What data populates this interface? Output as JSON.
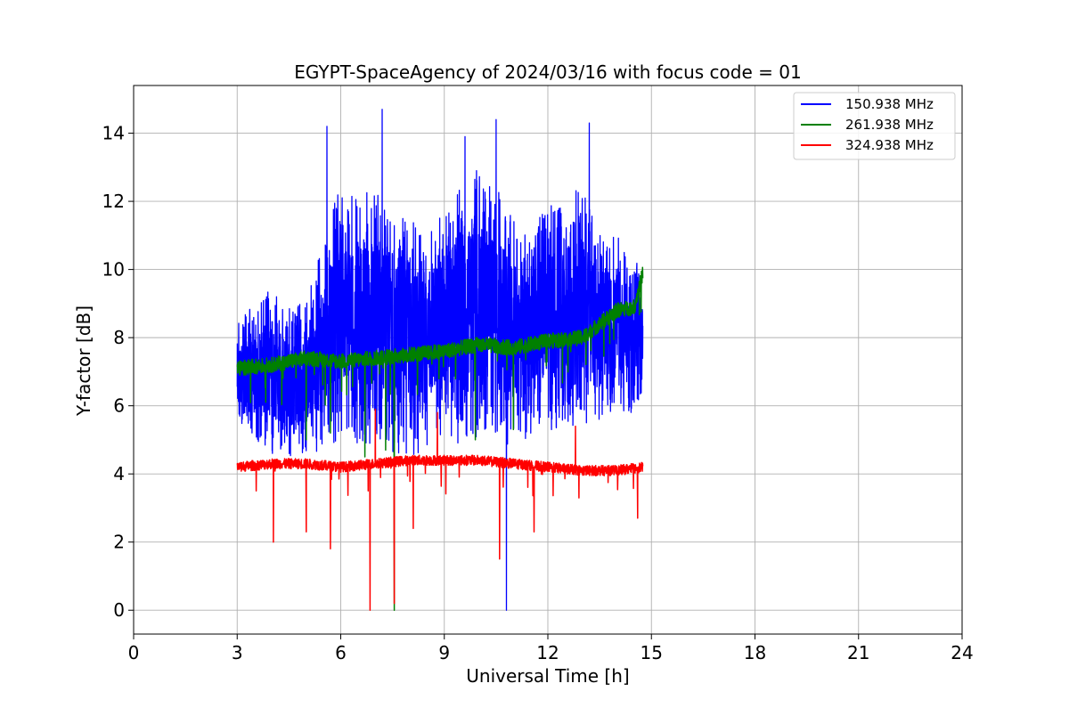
{
  "chart_data": {
    "type": "line",
    "title": "EGYPT-SpaceAgency of 2024/03/16 with focus code = 01",
    "xlabel": "Universal Time [h]",
    "ylabel": "Y-factor [dB]",
    "xlim": [
      0,
      24
    ],
    "ylim": [
      -0.7,
      15.4
    ],
    "xticks": [
      0,
      3,
      6,
      9,
      12,
      15,
      18,
      21,
      24
    ],
    "yticks": [
      0,
      2,
      4,
      6,
      8,
      10,
      12,
      14
    ],
    "grid": true,
    "legend_position": "top-right",
    "series": [
      {
        "name": "150.938 MHz",
        "color": "#0000ff",
        "x_range": [
          3.0,
          14.75
        ],
        "envelope": {
          "x": [
            3.0,
            3.5,
            4.0,
            4.5,
            5.0,
            5.5,
            6.0,
            6.5,
            7.0,
            7.5,
            8.0,
            8.5,
            9.0,
            9.5,
            10.0,
            10.5,
            11.0,
            11.5,
            12.0,
            12.5,
            13.0,
            13.5,
            14.0,
            14.5,
            14.75
          ],
          "low": [
            5.5,
            5.0,
            4.6,
            4.5,
            4.6,
            4.7,
            5.0,
            4.8,
            4.6,
            4.5,
            4.4,
            4.5,
            4.7,
            4.8,
            5.0,
            5.0,
            4.8,
            5.0,
            5.2,
            5.4,
            5.4,
            5.6,
            5.8,
            5.8,
            6.2
          ],
          "high": [
            8.8,
            9.0,
            9.5,
            9.0,
            9.0,
            11.0,
            12.5,
            12.0,
            12.5,
            11.5,
            11.5,
            11.0,
            12.0,
            12.5,
            13.0,
            12.5,
            11.5,
            11.0,
            12.0,
            12.0,
            12.5,
            11.0,
            11.0,
            10.5,
            10.0
          ]
        },
        "spikes": [
          {
            "x": 5.6,
            "y": 14.2
          },
          {
            "x": 7.2,
            "y": 14.7
          },
          {
            "x": 10.5,
            "y": 14.4
          },
          {
            "x": 13.2,
            "y": 14.3
          },
          {
            "x": 9.6,
            "y": 13.9
          },
          {
            "x": 10.8,
            "y": 0.0
          }
        ]
      },
      {
        "name": "261.938 MHz",
        "color": "#008000",
        "x_range": [
          3.0,
          14.75
        ],
        "trend": {
          "x": [
            3.0,
            4.0,
            5.0,
            6.0,
            7.0,
            8.0,
            9.0,
            10.0,
            11.0,
            12.0,
            13.0,
            13.5,
            14.0,
            14.5,
            14.75
          ],
          "y": [
            7.1,
            7.2,
            7.4,
            7.3,
            7.4,
            7.5,
            7.6,
            7.8,
            7.7,
            7.9,
            8.0,
            8.4,
            8.8,
            8.9,
            9.9
          ]
        },
        "dips": [
          {
            "x": 5.0,
            "y": 5.0
          },
          {
            "x": 5.7,
            "y": 5.2
          },
          {
            "x": 6.7,
            "y": 4.5
          },
          {
            "x": 7.3,
            "y": 4.7
          },
          {
            "x": 7.55,
            "y": 0.0
          },
          {
            "x": 9.9,
            "y": 5.0
          },
          {
            "x": 11.0,
            "y": 5.3
          }
        ]
      },
      {
        "name": "324.938 MHz",
        "color": "#ff0000",
        "x_range": [
          3.0,
          14.75
        ],
        "trend": {
          "x": [
            3.0,
            4.0,
            5.0,
            6.0,
            7.0,
            8.0,
            9.0,
            10.0,
            11.0,
            12.0,
            13.0,
            14.0,
            14.75
          ],
          "y": [
            4.2,
            4.3,
            4.3,
            4.2,
            4.3,
            4.4,
            4.4,
            4.4,
            4.3,
            4.2,
            4.1,
            4.1,
            4.2
          ]
        },
        "dips": [
          {
            "x": 4.05,
            "y": 2.0
          },
          {
            "x": 5.0,
            "y": 2.3
          },
          {
            "x": 5.7,
            "y": 1.8
          },
          {
            "x": 6.85,
            "y": 0.0
          },
          {
            "x": 7.55,
            "y": 0.2
          },
          {
            "x": 8.1,
            "y": 2.4
          },
          {
            "x": 10.6,
            "y": 1.5
          },
          {
            "x": 11.6,
            "y": 2.3
          },
          {
            "x": 14.6,
            "y": 2.7
          }
        ],
        "spikes": [
          {
            "x": 7.0,
            "y": 5.9
          },
          {
            "x": 8.8,
            "y": 5.8
          },
          {
            "x": 12.8,
            "y": 5.4
          }
        ]
      }
    ]
  }
}
